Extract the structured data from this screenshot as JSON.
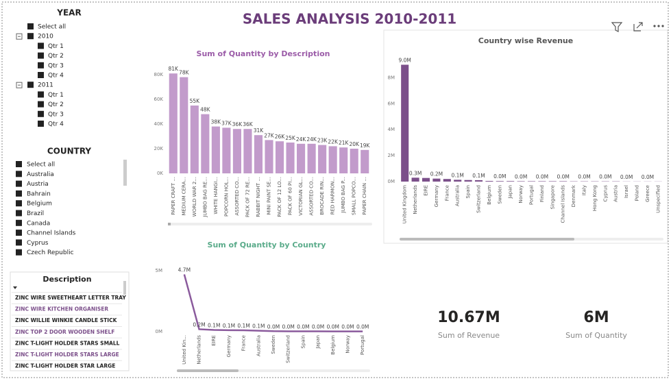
{
  "title": "SALES ANALYSIS 2010-2011",
  "year_slicer": {
    "title": "YEAR",
    "items": [
      {
        "label": "Select all"
      },
      {
        "label": "2010",
        "children": [
          "Qtr 1",
          "Qtr 2",
          "Qtr 3",
          "Qtr 4"
        ]
      },
      {
        "label": "2011",
        "children": [
          "Qtr 1",
          "Qtr 2",
          "Qtr 3",
          "Qtr 4"
        ]
      }
    ]
  },
  "country_slicer": {
    "title": "COUNTRY",
    "items": [
      "Select all",
      "Australia",
      "Austria",
      "Bahrain",
      "Belgium",
      "Brazil",
      "Canada",
      "Channel Islands",
      "Cyprus",
      "Czech Republic"
    ]
  },
  "description_table": {
    "header": "Description",
    "rows": [
      "ZINC WIRE SWEETHEART LETTER TRAY",
      "ZINC WIRE KITCHEN ORGANISER",
      "ZINC WILLIE WINKIE CANDLE STICK",
      "ZINC TOP 2 DOOR WOODEN SHELF",
      "ZINC T-LIGHT HOLDER STARS SMALL",
      "ZINC T-LIGHT HOLDER STARS LARGE",
      "ZINC T-LIGHT HOLDER STAR LARGE"
    ]
  },
  "cards": [
    {
      "value": "10.67M",
      "label": "Sum of Revenue"
    },
    {
      "value": "6M",
      "label": "Sum of Quantity"
    }
  ],
  "chart_data": [
    {
      "type": "bar",
      "title": "Sum of Quantity by Description",
      "color": "#c29bcb",
      "categories": [
        "PAPER CRAFT ...",
        "MEDIUM CERA...",
        "WORLD WAR 2...",
        "JUMBO BAG RE...",
        "WHITE HANGI...",
        "POPCORN HOL...",
        "ASSORTED CO...",
        "PACK OF 72 RE...",
        "RABBIT NIGHT ...",
        "MINI PAINT SE...",
        "PACK OF 12 LO...",
        "PACK OF 60 PI...",
        "VICTORIAN GL...",
        "ASSORTED CO...",
        "BROCADE RIN...",
        "RED HARMON...",
        "JUMBO BAG P...",
        "SMALL POPCO...",
        "PAPER CHAIN ..."
      ],
      "values": [
        81000,
        78000,
        55000,
        48000,
        38000,
        37000,
        36000,
        36000,
        31000,
        27000,
        26000,
        25000,
        24000,
        24000,
        23000,
        22000,
        21000,
        20000,
        19000
      ],
      "value_labels": [
        "81K",
        "78K",
        "55K",
        "48K",
        "38K",
        "37K",
        "36K",
        "36K",
        "31K",
        "27K",
        "26K",
        "25K",
        "24K",
        "24K",
        "23K",
        "22K",
        "21K",
        "20K",
        "19K"
      ],
      "ylim": [
        0,
        85000
      ],
      "yticks": [
        {
          "value": 0,
          "label": "0K"
        },
        {
          "value": 20000,
          "label": "20K"
        },
        {
          "value": 40000,
          "label": "40K"
        },
        {
          "value": 60000,
          "label": "60K"
        },
        {
          "value": 80000,
          "label": "80K"
        }
      ]
    },
    {
      "type": "bar",
      "title": "Country wise Revenue",
      "color": "#7b4f8a",
      "categories": [
        "United Kingdom",
        "Netherlands",
        "EIRE",
        "Germany",
        "France",
        "Australia",
        "Spain",
        "Switzerland",
        "Belgium",
        "Sweden",
        "Japan",
        "Norway",
        "Portugal",
        "Finland",
        "Singapore",
        "Channel Islands",
        "Denmark",
        "Italy",
        "Hong Kong",
        "Cyprus",
        "Austria",
        "Israel",
        "Poland",
        "Greece",
        "Unspecified"
      ],
      "values": [
        9000000,
        300000,
        280000,
        230000,
        200000,
        140000,
        120000,
        110000,
        50000,
        40000,
        40000,
        30000,
        30000,
        30000,
        30000,
        30000,
        20000,
        20000,
        20000,
        20000,
        20000,
        10000,
        10000,
        10000,
        10000
      ],
      "value_labels": [
        "9.0M",
        "0.3M",
        null,
        "0.2M",
        null,
        "0.1M",
        null,
        "0.1M",
        null,
        "0.0M",
        null,
        "0.0M",
        null,
        "0.0M",
        null,
        "0.0M",
        null,
        "0.0M",
        null,
        "0.0M",
        null,
        "0.0M",
        null,
        "0.0M",
        null
      ],
      "ylim": [
        0,
        9500000
      ],
      "yticks": [
        {
          "value": 0,
          "label": "0M"
        },
        {
          "value": 2000000,
          "label": "2M"
        },
        {
          "value": 4000000,
          "label": "4M"
        },
        {
          "value": 6000000,
          "label": "6M"
        },
        {
          "value": 8000000,
          "label": "8M"
        }
      ]
    },
    {
      "type": "line",
      "title": "Sum of Quantity by Country",
      "color": "#8a5a9c",
      "categories": [
        "United Kin...",
        "Netherlands",
        "EIRE",
        "Germany",
        "France",
        "Australia",
        "Sweden",
        "Switzerland",
        "Spain",
        "Japan",
        "Belgium",
        "Norway",
        "Portugal"
      ],
      "values": [
        4700000,
        200000,
        140000,
        120000,
        110000,
        80000,
        40000,
        30000,
        30000,
        30000,
        20000,
        20000,
        20000
      ],
      "value_labels": [
        "4.7M",
        "0.2M",
        "0.1M",
        "0.1M",
        "0.1M",
        "0.1M",
        "0.0M",
        "0.0M",
        "0.0M",
        "0.0M",
        "0.0M",
        "0.0M",
        "0.0M"
      ],
      "ylim": [
        0,
        5400000
      ],
      "yticks": [
        {
          "value": 0,
          "label": "0M"
        },
        {
          "value": 5000000,
          "label": "5M"
        }
      ]
    }
  ]
}
